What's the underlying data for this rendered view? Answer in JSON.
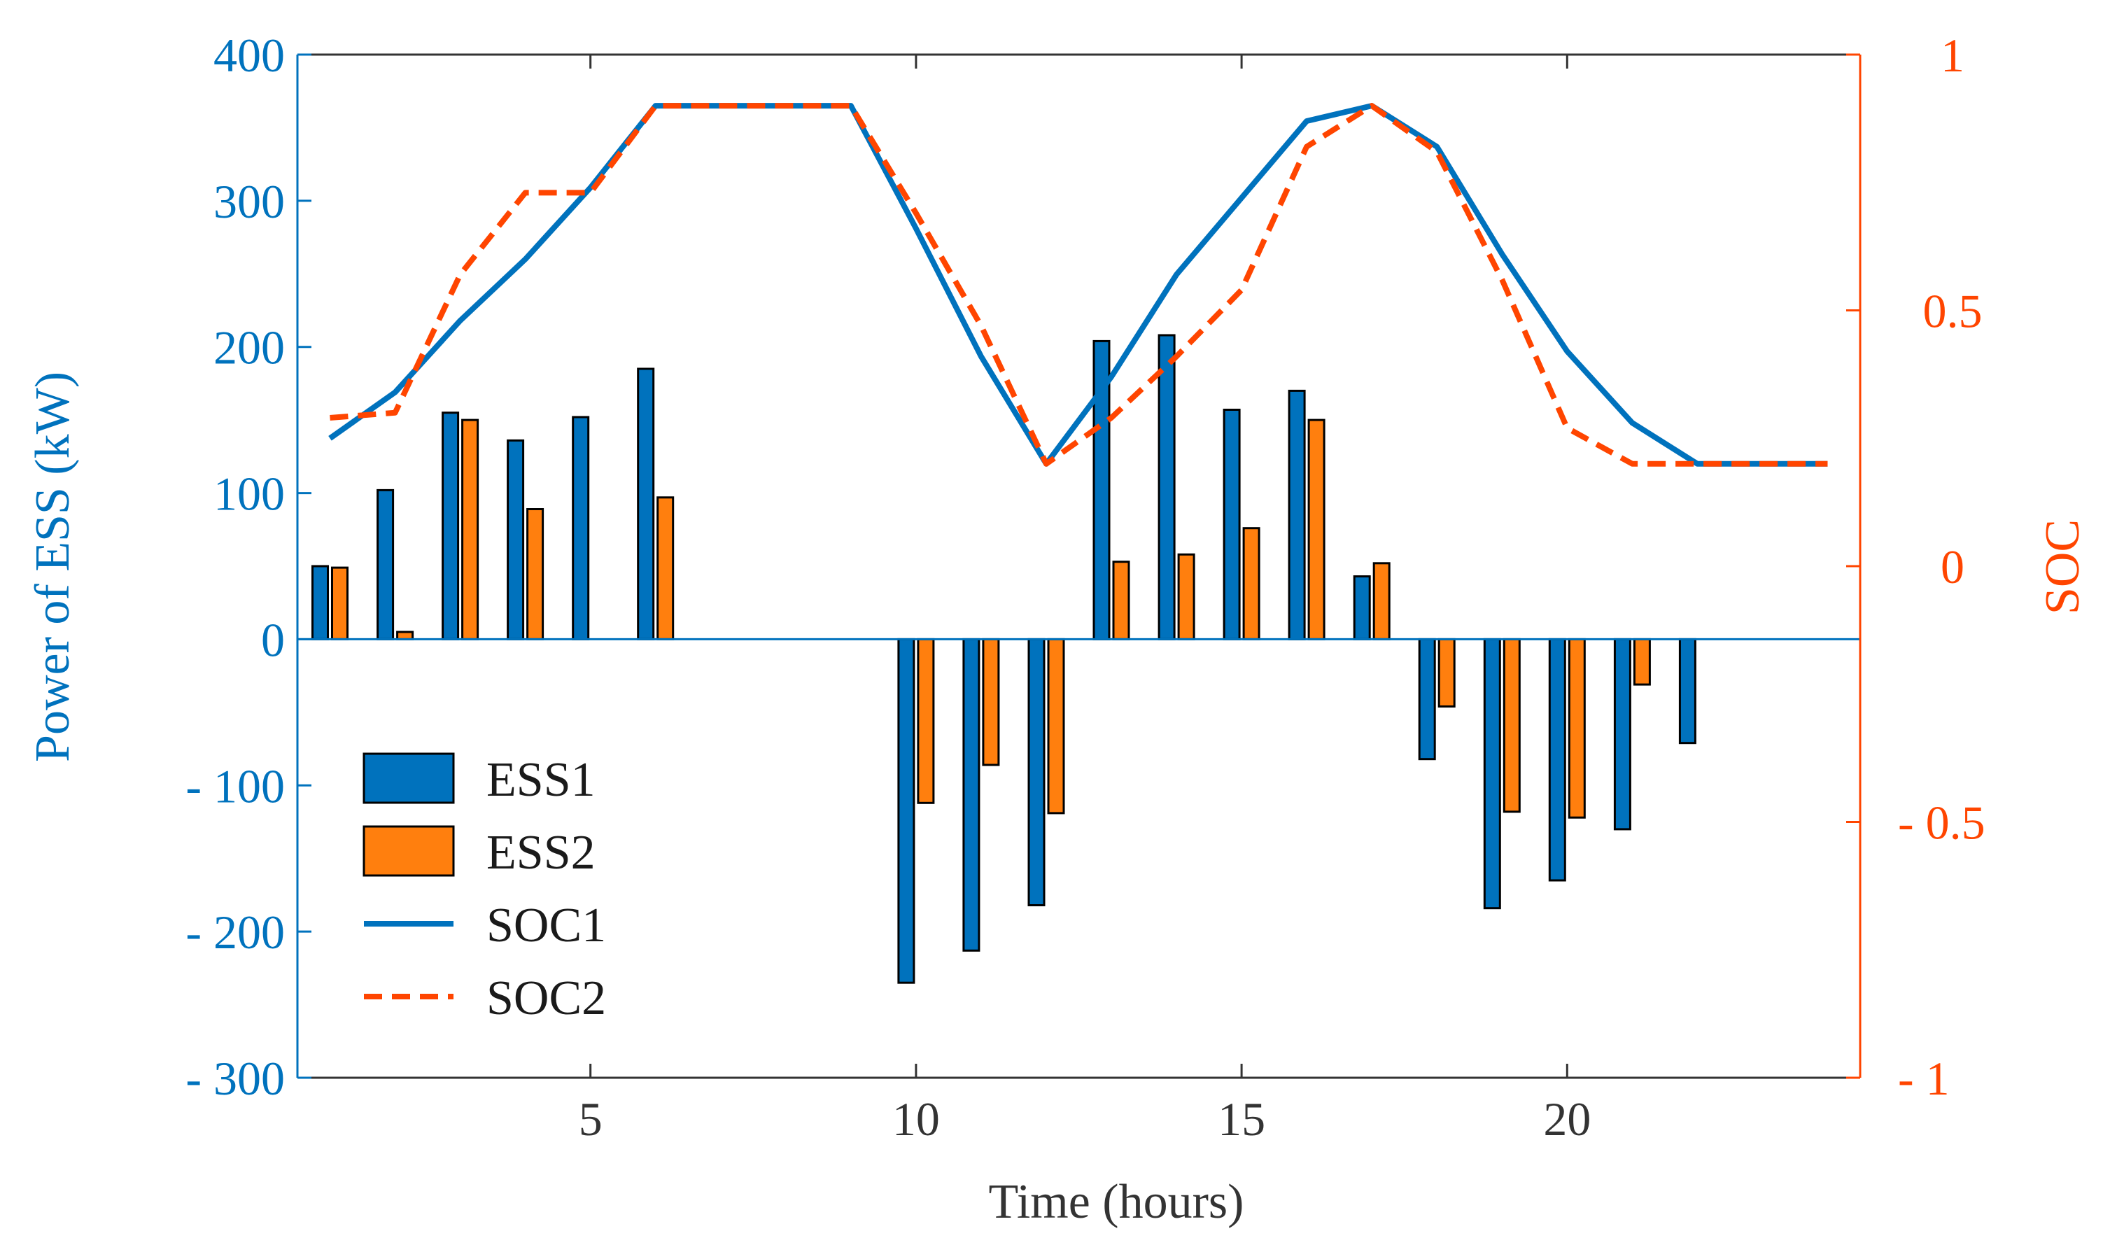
{
  "chart_data": {
    "type": "bar+line",
    "xlabel": "Time (hours)",
    "ylabel_left": "Power of ESS (kW)",
    "ylabel_right": "SOC",
    "xlim": [
      0.5,
      24.5
    ],
    "ylim_left": [
      -300,
      400
    ],
    "ylim_right": [
      -1,
      1
    ],
    "x_ticks": [
      {
        "value": 5,
        "label": "5"
      },
      {
        "value": 10,
        "label": "10"
      },
      {
        "value": 15,
        "label": "15"
      },
      {
        "value": 20,
        "label": "20"
      }
    ],
    "y_left_ticks": [
      {
        "value": 400,
        "label": "400"
      },
      {
        "value": 300,
        "label": "300"
      },
      {
        "value": 200,
        "label": "200"
      },
      {
        "value": 100,
        "label": "100"
      },
      {
        "value": 0,
        "label": "0"
      },
      {
        "value": -100,
        "label": "- 100"
      },
      {
        "value": -200,
        "label": "- 200"
      },
      {
        "value": -300,
        "label": "- 300"
      }
    ],
    "y_right_ticks": [
      {
        "value": 1,
        "label": "1"
      },
      {
        "value": 0.5,
        "label": "0.5"
      },
      {
        "value": 0,
        "label": "0"
      },
      {
        "value": -0.5,
        "label": "- 0.5"
      },
      {
        "value": -1,
        "label": "- 1"
      }
    ],
    "hours": [
      1,
      2,
      3,
      4,
      5,
      6,
      7,
      8,
      9,
      10,
      11,
      12,
      13,
      14,
      15,
      16,
      17,
      18,
      19,
      20,
      21,
      22,
      23,
      24
    ],
    "bar_series": [
      {
        "name": "ESS1",
        "color": "#0072BD",
        "values": [
          50,
          102,
          155,
          136,
          152,
          185,
          0,
          0,
          0,
          -235,
          -213,
          -182,
          204,
          208,
          157,
          170,
          43,
          -82,
          -184,
          -165,
          -130,
          -71,
          0,
          0
        ]
      },
      {
        "name": "ESS2",
        "color": "#FF7F0E",
        "values": [
          49,
          5,
          150,
          89,
          0,
          97,
          0,
          0,
          0,
          -112,
          -86,
          -119,
          53,
          58,
          76,
          150,
          52,
          -46,
          -118,
          -122,
          -31,
          0,
          0,
          0
        ]
      }
    ],
    "line_series": [
      {
        "name": "SOC1",
        "color": "#0072BD",
        "dash": "solid",
        "values": [
          0.25,
          0.34,
          0.48,
          0.6,
          0.74,
          0.9,
          0.9,
          0.9,
          0.9,
          0.66,
          0.41,
          0.2,
          0.37,
          0.57,
          0.72,
          0.87,
          0.9,
          0.82,
          0.61,
          0.42,
          0.28,
          0.2,
          0.2,
          0.2
        ]
      },
      {
        "name": "SOC2",
        "color": "#FF4500",
        "dash": "dashed",
        "values": [
          0.29,
          0.3,
          0.57,
          0.73,
          0.73,
          0.9,
          0.9,
          0.9,
          0.9,
          0.69,
          0.47,
          0.2,
          0.29,
          0.41,
          0.54,
          0.82,
          0.9,
          0.81,
          0.56,
          0.27,
          0.2,
          0.2,
          0.2,
          0.2
        ]
      }
    ],
    "legend": {
      "position": "left",
      "entries": [
        {
          "label": "ESS1",
          "kind": "bar",
          "color": "#0072BD"
        },
        {
          "label": "ESS2",
          "kind": "bar",
          "color": "#FF7F0E"
        },
        {
          "label": "SOC1",
          "kind": "line",
          "color": "#0072BD",
          "dash": "solid"
        },
        {
          "label": "SOC2",
          "kind": "line",
          "color": "#FF4500",
          "dash": "dashed"
        }
      ]
    },
    "colors": {
      "left_axis": "#0072BD",
      "right_axis": "#FF4500",
      "x_axis": "#333333"
    }
  }
}
